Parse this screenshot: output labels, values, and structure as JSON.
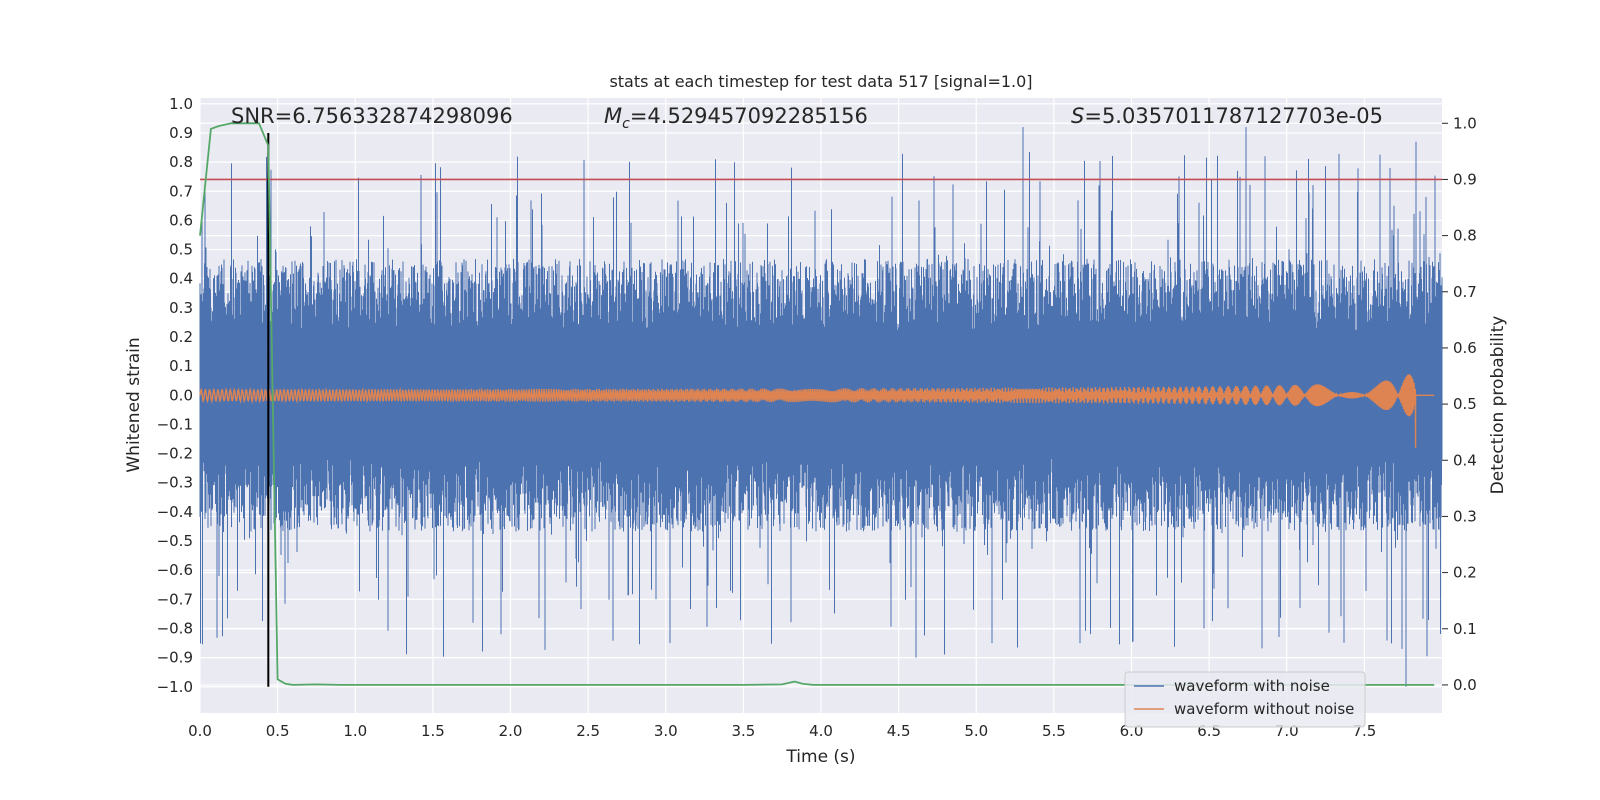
{
  "chart_data": {
    "type": "line",
    "title": "stats at each timestep for test data 517 [signal=1.0]",
    "xlabel": "Time (s)",
    "ylabel": "Whitened strain",
    "ylabel_right": "Detection probability",
    "xlim": [
      0.0,
      8.0
    ],
    "ylim": [
      -1.09,
      1.02
    ],
    "ylim_right": [
      -0.05,
      1.045
    ],
    "x_ticks": [
      "0.0",
      "0.5",
      "1.0",
      "1.5",
      "2.0",
      "2.5",
      "3.0",
      "3.5",
      "4.0",
      "4.5",
      "5.0",
      "5.5",
      "6.0",
      "6.5",
      "7.0",
      "7.5"
    ],
    "y_ticks": [
      "1.0",
      "0.9",
      "0.8",
      "0.7",
      "0.6",
      "0.5",
      "0.4",
      "0.3",
      "0.2",
      "0.1",
      "0.0",
      "−0.1",
      "−0.2",
      "−0.3",
      "−0.4",
      "−0.5",
      "−0.6",
      "−0.7",
      "−0.8",
      "−0.9",
      "−1.0"
    ],
    "y_right_ticks": [
      "1.0",
      "0.9",
      "0.8",
      "0.7",
      "0.6",
      "0.5",
      "0.4",
      "0.3",
      "0.2",
      "0.1",
      "0.0"
    ],
    "grid": true,
    "legend_position": "lower-right",
    "annotations": {
      "snr": "SNR=6.756332874298096",
      "mc_symbol": "M",
      "mc_sub": "c",
      "mc_value": "=4.529457092285156",
      "s_symbol": "S",
      "s_value": "=5.0357011787127703e-05"
    },
    "series": [
      {
        "name": "waveform with noise",
        "color": "#4c72b0",
        "noise_envelope": 0.36,
        "noise_peak_max": 0.92,
        "noise_trough_min": -1.0
      },
      {
        "name": "waveform without noise",
        "color": "#dd8452",
        "chirp_start_amplitude": 0.02,
        "chirp_peak_amplitude": 0.15,
        "merger_time": 7.83
      },
      {
        "name": "detection probability",
        "color": "#55a868",
        "axis": "right",
        "x": [
          0.0,
          0.07,
          0.12,
          0.2,
          0.3,
          0.38,
          0.44,
          0.5,
          0.55,
          0.6,
          0.75,
          0.9,
          1.5,
          2.5,
          3.5,
          3.75,
          3.83,
          3.88,
          3.95,
          4.5,
          5.5,
          6.5,
          7.5,
          7.95
        ],
        "y": [
          0.8,
          0.99,
          0.995,
          1.0,
          1.0,
          1.0,
          0.96,
          0.01,
          0.002,
          0.0,
          0.001,
          0.0,
          0.0,
          0.0,
          0.0,
          0.001,
          0.006,
          0.002,
          0.0,
          0.0,
          0.0,
          0.0,
          0.0,
          0.0
        ]
      }
    ],
    "threshold": {
      "axis": "right",
      "value": 0.9,
      "color": "#c44e52"
    },
    "marker": {
      "x": 0.44,
      "y_range": [
        -1.0,
        0.9
      ],
      "color": "#000000"
    }
  }
}
